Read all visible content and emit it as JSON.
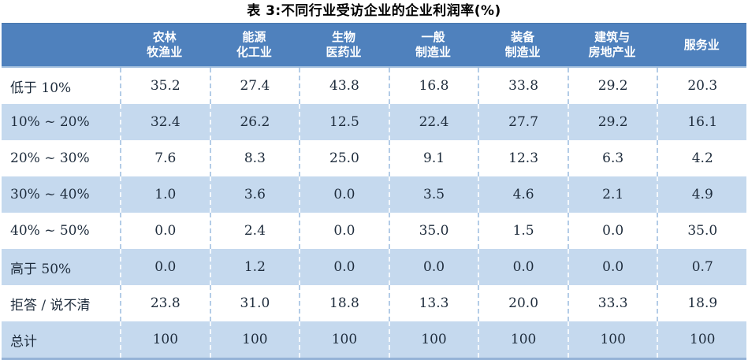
{
  "title": "表 3:不同行业受访企业的企业利润率(%)",
  "colors": {
    "header_bg": "#4f81bd",
    "stripe_bg": "#c5d9ee",
    "bottom_border": "#95b3d7",
    "header_text": "#ffffff",
    "body_text": "#1e2c3c"
  },
  "table": {
    "corner_label": "",
    "columns": [
      {
        "lines": [
          "农林",
          "牧渔业"
        ]
      },
      {
        "lines": [
          "能源",
          "化工业"
        ]
      },
      {
        "lines": [
          "生物",
          "医药业"
        ]
      },
      {
        "lines": [
          "一般",
          "制造业"
        ]
      },
      {
        "lines": [
          "装备",
          "制造业"
        ]
      },
      {
        "lines": [
          "建筑与",
          "房地产业"
        ]
      },
      {
        "lines": [
          "服务业"
        ]
      }
    ],
    "rows": [
      {
        "label": "低于 10%",
        "values": [
          "35.2",
          "27.4",
          "43.8",
          "16.8",
          "33.8",
          "29.2",
          "20.3"
        ]
      },
      {
        "label": "10% ~ 20%",
        "values": [
          "32.4",
          "26.2",
          "12.5",
          "22.4",
          "27.7",
          "29.2",
          "16.1"
        ]
      },
      {
        "label": "20% ~ 30%",
        "values": [
          "7.6",
          "8.3",
          "25.0",
          "9.1",
          "12.3",
          "6.3",
          "4.2"
        ]
      },
      {
        "label": "30% ~ 40%",
        "values": [
          "1.0",
          "3.6",
          "0.0",
          "3.5",
          "4.6",
          "2.1",
          "4.9"
        ]
      },
      {
        "label": "40% ~ 50%",
        "values": [
          "0.0",
          "2.4",
          "0.0",
          "35.0",
          "1.5",
          "0.0",
          "35.0"
        ]
      },
      {
        "label": "高于 50%",
        "values": [
          "0.0",
          "1.2",
          "0.0",
          "0.0",
          "0.0",
          "0.0",
          "0.7"
        ]
      },
      {
        "label": "拒答 / 说不清",
        "values": [
          "23.8",
          "31.0",
          "18.8",
          "13.3",
          "20.0",
          "33.3",
          "18.9"
        ]
      },
      {
        "label": "总计",
        "values": [
          "100",
          "100",
          "100",
          "100",
          "100",
          "100",
          "100"
        ]
      }
    ]
  },
  "chart_data": {
    "type": "table",
    "title": "表 3:不同行业受访企业的企业利润率(%)",
    "categories": [
      "农林牧渔业",
      "能源化工业",
      "生物医药业",
      "一般制造业",
      "装备制造业",
      "建筑与房地产业",
      "服务业"
    ],
    "row_labels": [
      "低于 10%",
      "10% ~ 20%",
      "20% ~ 30%",
      "30% ~ 40%",
      "40% ~ 50%",
      "高于 50%",
      "拒答 / 说不清",
      "总计"
    ],
    "series": [
      {
        "name": "农林牧渔业",
        "values": [
          35.2,
          32.4,
          7.6,
          1.0,
          0.0,
          0.0,
          23.8,
          100
        ]
      },
      {
        "name": "能源化工业",
        "values": [
          27.4,
          26.2,
          8.3,
          3.6,
          2.4,
          1.2,
          31.0,
          100
        ]
      },
      {
        "name": "生物医药业",
        "values": [
          43.8,
          12.5,
          25.0,
          0.0,
          0.0,
          0.0,
          18.8,
          100
        ]
      },
      {
        "name": "一般制造业",
        "values": [
          16.8,
          22.4,
          9.1,
          3.5,
          35.0,
          0.0,
          13.3,
          100
        ]
      },
      {
        "name": "装备制造业",
        "values": [
          33.8,
          27.7,
          12.3,
          4.6,
          1.5,
          0.0,
          20.0,
          100
        ]
      },
      {
        "name": "建筑与房地产业",
        "values": [
          29.2,
          29.2,
          6.3,
          2.1,
          0.0,
          0.0,
          33.3,
          100
        ]
      },
      {
        "name": "服务业",
        "values": [
          20.3,
          16.1,
          4.2,
          4.9,
          35.0,
          0.7,
          18.9,
          100
        ]
      }
    ]
  }
}
